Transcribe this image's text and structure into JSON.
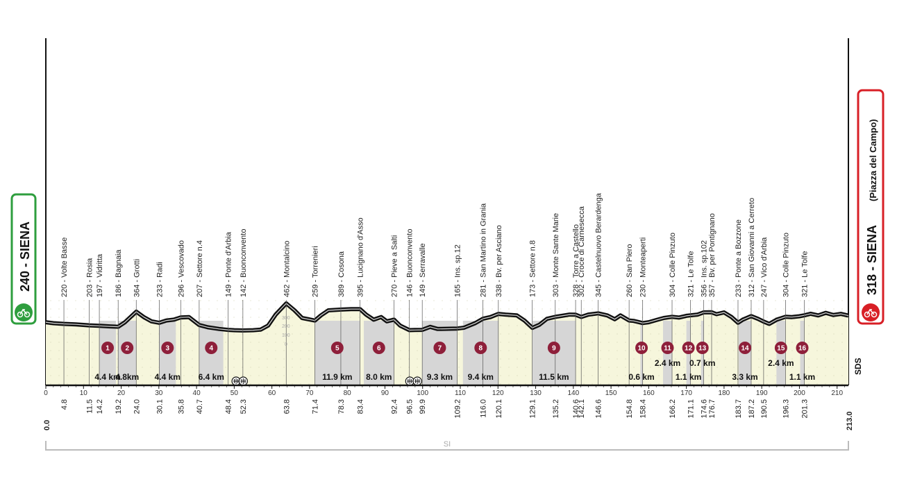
{
  "start": {
    "label": "240 - SIENA",
    "color": "#2e9e3e"
  },
  "finish": {
    "label": "318 - SIENA",
    "sublabel": "(Piazza del Campo)",
    "color": "#d81f26"
  },
  "total": {
    "start_km": "0.0",
    "end_km": "213.0"
  },
  "scale_label": "SI",
  "brand": "SDS",
  "altitude_scale": [
    "300",
    "200",
    "100",
    "0"
  ],
  "km_ticks": [
    0,
    10,
    20,
    30,
    40,
    50,
    60,
    70,
    80,
    90,
    100,
    110,
    120,
    130,
    140,
    150,
    160,
    170,
    180,
    190,
    200,
    210
  ],
  "waypoints": [
    {
      "km": 4.8,
      "label": "220 - Volte Basse"
    },
    {
      "km": 11.5,
      "label": "203 - Rosia"
    },
    {
      "km": 14.2,
      "label": "197 - Vidritta"
    },
    {
      "km": 19.2,
      "label": "186 - Bagnaia"
    },
    {
      "km": 24.0,
      "label": "364 - Grotti"
    },
    {
      "km": 30.1,
      "label": "233 - Radi"
    },
    {
      "km": 35.8,
      "label": "296 - Vescovado"
    },
    {
      "km": 40.7,
      "label": "207 - Settore n.4"
    },
    {
      "km": 48.4,
      "label": "149 - Ponte d'Arbia"
    },
    {
      "km": 52.3,
      "label": "142 - Buonconvento"
    },
    {
      "km": 63.8,
      "label": "462 - Montalcino"
    },
    {
      "km": 71.4,
      "label": "259 - Torrenieri"
    },
    {
      "km": 78.3,
      "label": "389 - Cosona"
    },
    {
      "km": 83.4,
      "label": "395 - Lucignano d'Asso"
    },
    {
      "km": 92.4,
      "label": "270 - Pieve a Salti"
    },
    {
      "km": 96.5,
      "label": "146 - Buonconvento"
    },
    {
      "km": 99.9,
      "label": "149 - Serravalle"
    },
    {
      "km": 109.2,
      "label": "165 - Ins. sp.12"
    },
    {
      "km": 116.0,
      "label": "281 - San Martino in Grania"
    },
    {
      "km": 120.1,
      "label": "338 - Bv. per Asciano"
    },
    {
      "km": 129.1,
      "label": "173 - Settore n.8"
    },
    {
      "km": 135.2,
      "label": "303 - Monte Sante Marie"
    },
    {
      "km": 140.6,
      "label": "328 - Torre a Castello"
    },
    {
      "km": 142.1,
      "label": "302 - Croce di Carnesecca"
    },
    {
      "km": 146.6,
      "label": "345 - Castelnuovo Berardenga"
    },
    {
      "km": 154.8,
      "label": "260 - San Piero"
    },
    {
      "km": 158.4,
      "label": "230 - Monteaperti"
    },
    {
      "km": 166.2,
      "label": "304 - Colle Pinzuto"
    },
    {
      "km": 171.1,
      "label": "321 - Le Tolfe"
    },
    {
      "km": 174.6,
      "label": "356 - Ins. sp.102"
    },
    {
      "km": 176.7,
      "label": "357 - Bv. per Pontignano"
    },
    {
      "km": 183.7,
      "label": "233 - Ponte a Bozzone"
    },
    {
      "km": 187.2,
      "label": "312 - San Giovanni a Cerreto"
    },
    {
      "km": 190.5,
      "label": "247 - Vico d'Arbia"
    },
    {
      "km": 196.3,
      "label": "304 - Colle Pinzuto"
    },
    {
      "km": 201.3,
      "label": "321 - Le Tolfe"
    }
  ],
  "sectors": [
    {
      "num": "1",
      "km_start": 14.2,
      "km_end": 18.6,
      "length": "4.4 km"
    },
    {
      "num": "2",
      "km_start": 19.2,
      "km_end": 24.0,
      "length": "4.8km"
    },
    {
      "num": "3",
      "km_start": 30.1,
      "km_end": 34.5,
      "length": "4.4 km"
    },
    {
      "num": "4",
      "km_start": 40.7,
      "km_end": 47.1,
      "length": "6.4 km"
    },
    {
      "num": "5",
      "km_start": 71.4,
      "km_end": 83.3,
      "length": "11.9 km"
    },
    {
      "num": "6",
      "km_start": 84.4,
      "km_end": 92.4,
      "length": "8.0 km"
    },
    {
      "num": "7",
      "km_start": 99.9,
      "km_end": 109.2,
      "length": "9.3 km"
    },
    {
      "num": "8",
      "km_start": 110.7,
      "km_end": 120.1,
      "length": "9.4 km"
    },
    {
      "num": "9",
      "km_start": 129.1,
      "km_end": 140.6,
      "length": "11.5 km"
    },
    {
      "num": "10",
      "km_start": 157.8,
      "km_end": 158.4,
      "length": "0.6 km"
    },
    {
      "num": "11",
      "km_start": 163.8,
      "km_end": 166.2,
      "length": "2.4 km"
    },
    {
      "num": "12",
      "km_start": 170.0,
      "km_end": 171.1,
      "length": "1.1 km"
    },
    {
      "num": "13",
      "km_start": 173.9,
      "km_end": 174.6,
      "length": "0.7 km"
    },
    {
      "num": "14",
      "km_start": 183.9,
      "km_end": 187.2,
      "length": "3.3 km"
    },
    {
      "num": "15",
      "km_start": 193.9,
      "km_end": 196.3,
      "length": "2.4 km"
    },
    {
      "num": "16",
      "km_start": 200.2,
      "km_end": 201.3,
      "length": "1.1 km"
    }
  ],
  "profile_elevations": [
    [
      0,
      240
    ],
    [
      2,
      228
    ],
    [
      4.8,
      220
    ],
    [
      8,
      214
    ],
    [
      11.5,
      203
    ],
    [
      14.2,
      197
    ],
    [
      17,
      190
    ],
    [
      19.2,
      186
    ],
    [
      21,
      240
    ],
    [
      24,
      364
    ],
    [
      26,
      300
    ],
    [
      28,
      250
    ],
    [
      30.1,
      233
    ],
    [
      32,
      260
    ],
    [
      34,
      270
    ],
    [
      35.8,
      296
    ],
    [
      38,
      300
    ],
    [
      40.7,
      207
    ],
    [
      43,
      180
    ],
    [
      46,
      160
    ],
    [
      48.4,
      149
    ],
    [
      50,
      145
    ],
    [
      52.3,
      142
    ],
    [
      55,
      145
    ],
    [
      57,
      152
    ],
    [
      59,
      200
    ],
    [
      61,
      330
    ],
    [
      63.8,
      462
    ],
    [
      66,
      380
    ],
    [
      68,
      290
    ],
    [
      71.4,
      259
    ],
    [
      73,
      320
    ],
    [
      75,
      380
    ],
    [
      78.3,
      389
    ],
    [
      81,
      395
    ],
    [
      83.4,
      395
    ],
    [
      85,
      330
    ],
    [
      87,
      270
    ],
    [
      89,
      300
    ],
    [
      90.5,
      250
    ],
    [
      92.4,
      270
    ],
    [
      94,
      200
    ],
    [
      96.5,
      146
    ],
    [
      98,
      148
    ],
    [
      99.9,
      149
    ],
    [
      102,
      185
    ],
    [
      104,
      160
    ],
    [
      106,
      162
    ],
    [
      109.2,
      165
    ],
    [
      111,
      175
    ],
    [
      114,
      230
    ],
    [
      116,
      281
    ],
    [
      118,
      300
    ],
    [
      120.1,
      338
    ],
    [
      122,
      330
    ],
    [
      125,
      320
    ],
    [
      127,
      260
    ],
    [
      129.1,
      173
    ],
    [
      131,
      210
    ],
    [
      133,
      280
    ],
    [
      135.2,
      303
    ],
    [
      137,
      315
    ],
    [
      139,
      330
    ],
    [
      140.6,
      328
    ],
    [
      142.1,
      302
    ],
    [
      144,
      330
    ],
    [
      146.6,
      345
    ],
    [
      149,
      320
    ],
    [
      151,
      275
    ],
    [
      152.5,
      320
    ],
    [
      154.8,
      260
    ],
    [
      156,
      255
    ],
    [
      158.4,
      230
    ],
    [
      160,
      240
    ],
    [
      162,
      265
    ],
    [
      164,
      290
    ],
    [
      166.2,
      304
    ],
    [
      168,
      295
    ],
    [
      170,
      315
    ],
    [
      171.1,
      321
    ],
    [
      173,
      330
    ],
    [
      174.6,
      356
    ],
    [
      176.7,
      357
    ],
    [
      178,
      335
    ],
    [
      180,
      355
    ],
    [
      182,
      300
    ],
    [
      183.7,
      233
    ],
    [
      185,
      270
    ],
    [
      187.2,
      312
    ],
    [
      189,
      280
    ],
    [
      190.5,
      247
    ],
    [
      192,
      220
    ],
    [
      194,
      270
    ],
    [
      196.3,
      304
    ],
    [
      198,
      300
    ],
    [
      200,
      310
    ],
    [
      201.3,
      321
    ],
    [
      203,
      340
    ],
    [
      205,
      320
    ],
    [
      207,
      350
    ],
    [
      209,
      325
    ],
    [
      211,
      338
    ],
    [
      213,
      318
    ]
  ]
}
